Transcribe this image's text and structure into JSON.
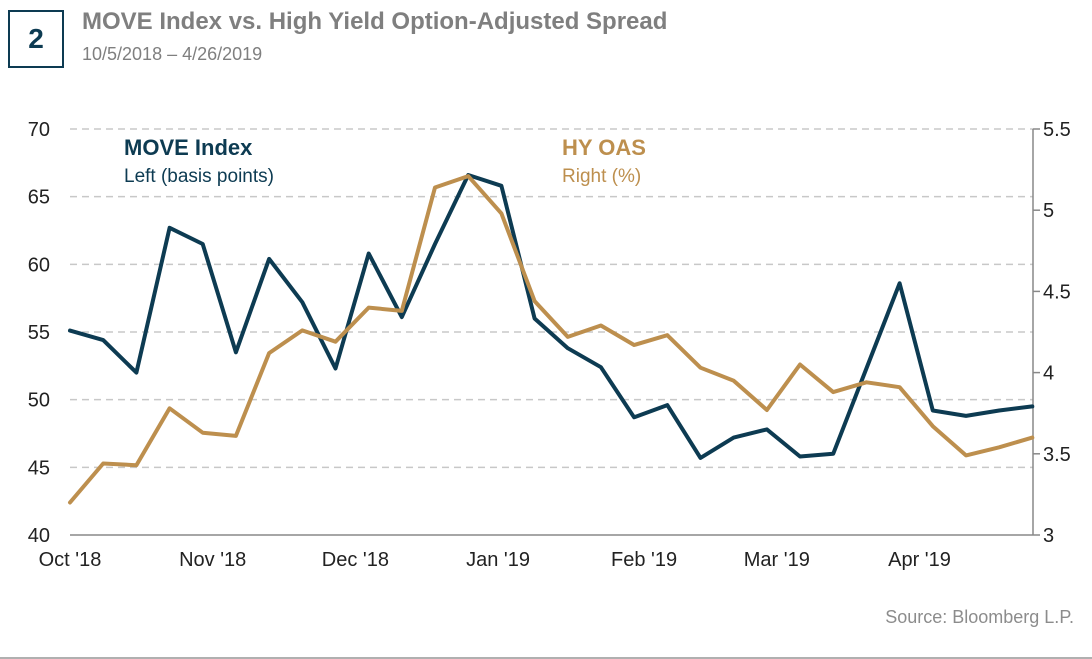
{
  "header": {
    "badge": "2",
    "title": "MOVE Index vs. High Yield Option-Adjusted Spread",
    "subtitle": "10/5/2018 – 4/26/2019"
  },
  "footer": {
    "source": "Source: Bloomberg L.P."
  },
  "colors": {
    "move": "#0d3b52",
    "hy": "#bd8f4e",
    "grid": "#c8c8c8",
    "axis": "#888888"
  },
  "chart_data": {
    "type": "line",
    "title": "MOVE Index vs. High Yield Option-Adjusted Spread",
    "x_start": "2018-10-05",
    "x_end": "2019-04-26",
    "x_week_count": 30,
    "x_tick_labels": [
      {
        "label": "Oct '18",
        "week": 0
      },
      {
        "label": "Nov '18",
        "week": 4.3
      },
      {
        "label": "Dec '18",
        "week": 8.6
      },
      {
        "label": "Jan '19",
        "week": 12.9
      },
      {
        "label": "Feb '19",
        "week": 17.3
      },
      {
        "label": "Mar '19",
        "week": 21.3
      },
      {
        "label": "Apr '19",
        "week": 25.6
      }
    ],
    "y_left": {
      "label": "Left (basis points)",
      "ticks": [
        "70",
        "65",
        "60",
        "55",
        "50",
        "45",
        "40"
      ],
      "range": [
        40,
        70
      ]
    },
    "y_right": {
      "label": "Right (%)",
      "ticks": [
        "5.5",
        "5",
        "4.5",
        "4",
        "3.5",
        "3"
      ],
      "range": [
        3,
        5.5
      ]
    },
    "grid": true,
    "series": [
      {
        "name": "MOVE Index",
        "sub": "Left (basis points)",
        "axis": "left",
        "values": [
          55.1,
          54.4,
          52.0,
          62.7,
          61.5,
          53.5,
          60.4,
          57.2,
          52.3,
          60.8,
          56.1,
          61.5,
          66.6,
          65.8,
          56.0,
          53.8,
          52.4,
          48.7,
          49.6,
          45.7,
          47.2,
          47.8,
          45.8,
          46.0,
          52.3,
          58.6,
          49.2,
          48.8,
          49.2,
          49.5
        ]
      },
      {
        "name": "HY OAS",
        "sub": "Right (%)",
        "axis": "right",
        "values": [
          3.2,
          3.44,
          3.43,
          3.78,
          3.63,
          3.61,
          4.12,
          4.26,
          4.19,
          4.4,
          4.38,
          5.14,
          5.21,
          4.98,
          4.44,
          4.22,
          4.29,
          4.17,
          4.23,
          4.03,
          3.95,
          3.77,
          4.05,
          3.88,
          3.94,
          3.91,
          3.67,
          3.49,
          3.54,
          3.6
        ]
      }
    ]
  }
}
